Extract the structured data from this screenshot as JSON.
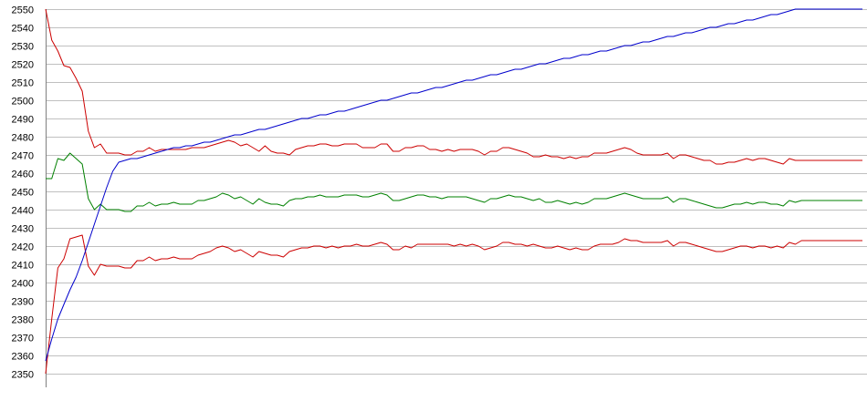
{
  "chart_data": {
    "type": "line",
    "title": "",
    "xlabel": "",
    "ylabel": "",
    "ylim": [
      2350,
      2550
    ],
    "y_ticks": [
      2350,
      2360,
      2370,
      2380,
      2390,
      2400,
      2410,
      2420,
      2430,
      2440,
      2450,
      2460,
      2470,
      2480,
      2490,
      2500,
      2510,
      2520,
      2530,
      2540,
      2550
    ],
    "y_tick_labels": [
      "2350",
      "2360",
      "2370",
      "2380",
      "2390",
      "2400",
      "2410",
      "2420",
      "2430",
      "2440",
      "2450",
      "2460",
      "2470",
      "2480",
      "2490",
      "2500",
      "2510",
      "2520",
      "2530",
      "2540",
      "2550"
    ],
    "x_count": 135,
    "grid": "horizontal",
    "legend": "none",
    "colors": {
      "upper_band": "#cc0000",
      "middle": "#008000",
      "lower_band": "#cc0000",
      "price": "#0000cc",
      "grid": "#c0c0c0",
      "axis": "#808080"
    },
    "series": [
      {
        "key": "upper_band",
        "color": "#cc0000",
        "values": [
          2550,
          2533,
          2527,
          2519,
          2518,
          2512,
          2505,
          2483,
          2474,
          2476,
          2471,
          2471,
          2471,
          2470,
          2470,
          2472,
          2472,
          2474,
          2472,
          2473,
          2473,
          2473,
          2473,
          2473,
          2474,
          2474,
          2474,
          2475,
          2476,
          2477,
          2478,
          2477,
          2475,
          2476,
          2474,
          2472,
          2475,
          2472,
          2471,
          2471,
          2470,
          2473,
          2474,
          2475,
          2475,
          2476,
          2476,
          2475,
          2475,
          2476,
          2476,
          2476,
          2474,
          2474,
          2474,
          2476,
          2476,
          2472,
          2472,
          2474,
          2474,
          2475,
          2475,
          2473,
          2473,
          2472,
          2473,
          2472,
          2473,
          2473,
          2473,
          2472,
          2470,
          2472,
          2472,
          2474,
          2474,
          2473,
          2472,
          2471,
          2469,
          2469,
          2470,
          2469,
          2469,
          2468,
          2469,
          2468,
          2469,
          2469,
          2471,
          2471,
          2471,
          2472,
          2473,
          2474,
          2473,
          2471,
          2470,
          2470,
          2470,
          2470,
          2471,
          2468,
          2470,
          2470,
          2469,
          2468,
          2467,
          2467,
          2465,
          2465,
          2466,
          2466,
          2467,
          2468,
          2467,
          2468,
          2468,
          2467,
          2466,
          2465,
          2468,
          2467,
          2467,
          2467,
          2467,
          2467,
          2467,
          2467,
          2467,
          2467,
          2467,
          2467,
          2467
        ]
      },
      {
        "key": "middle",
        "color": "#008000",
        "values": [
          2457,
          2457,
          2468,
          2467,
          2471,
          2468,
          2465,
          2446,
          2440,
          2443,
          2440,
          2440,
          2440,
          2439,
          2439,
          2442,
          2442,
          2444,
          2442,
          2443,
          2443,
          2444,
          2443,
          2443,
          2443,
          2445,
          2445,
          2446,
          2447,
          2449,
          2448,
          2446,
          2447,
          2445,
          2443,
          2446,
          2444,
          2443,
          2443,
          2442,
          2445,
          2446,
          2446,
          2447,
          2447,
          2448,
          2447,
          2447,
          2447,
          2448,
          2448,
          2448,
          2447,
          2447,
          2448,
          2449,
          2448,
          2445,
          2445,
          2446,
          2447,
          2448,
          2448,
          2447,
          2447,
          2446,
          2447,
          2447,
          2447,
          2447,
          2446,
          2445,
          2444,
          2446,
          2446,
          2447,
          2448,
          2447,
          2447,
          2446,
          2445,
          2446,
          2444,
          2444,
          2445,
          2444,
          2443,
          2444,
          2443,
          2444,
          2446,
          2446,
          2446,
          2447,
          2448,
          2449,
          2448,
          2447,
          2446,
          2446,
          2446,
          2446,
          2447,
          2444,
          2446,
          2446,
          2445,
          2444,
          2443,
          2442,
          2441,
          2441,
          2442,
          2443,
          2443,
          2444,
          2443,
          2444,
          2444,
          2443,
          2443,
          2442,
          2445,
          2444,
          2445,
          2445,
          2445,
          2445,
          2445,
          2445,
          2445,
          2445,
          2445,
          2445,
          2445
        ]
      },
      {
        "key": "lower_band",
        "color": "#cc0000",
        "values": [
          2350,
          2380,
          2408,
          2413,
          2424,
          2425,
          2426,
          2409,
          2404,
          2410,
          2409,
          2409,
          2409,
          2408,
          2408,
          2412,
          2412,
          2414,
          2412,
          2413,
          2413,
          2414,
          2413,
          2413,
          2413,
          2415,
          2416,
          2417,
          2419,
          2420,
          2419,
          2417,
          2418,
          2416,
          2414,
          2417,
          2416,
          2415,
          2415,
          2414,
          2417,
          2418,
          2419,
          2419,
          2420,
          2420,
          2419,
          2420,
          2419,
          2420,
          2420,
          2421,
          2420,
          2420,
          2421,
          2422,
          2421,
          2418,
          2418,
          2420,
          2419,
          2421,
          2421,
          2421,
          2421,
          2421,
          2421,
          2420,
          2421,
          2420,
          2421,
          2420,
          2418,
          2419,
          2420,
          2422,
          2422,
          2421,
          2421,
          2420,
          2421,
          2420,
          2419,
          2419,
          2420,
          2419,
          2418,
          2419,
          2418,
          2418,
          2420,
          2421,
          2421,
          2421,
          2422,
          2424,
          2423,
          2423,
          2422,
          2422,
          2422,
          2422,
          2423,
          2420,
          2422,
          2422,
          2421,
          2420,
          2419,
          2418,
          2417,
          2417,
          2418,
          2419,
          2420,
          2420,
          2419,
          2420,
          2420,
          2419,
          2420,
          2419,
          2422,
          2421,
          2423,
          2423,
          2423,
          2423,
          2423,
          2423,
          2423,
          2423,
          2423,
          2423,
          2423
        ]
      },
      {
        "key": "price",
        "color": "#0000cc",
        "values": [
          2357,
          2369,
          2380,
          2388,
          2396,
          2403,
          2412,
          2422,
          2432,
          2442,
          2452,
          2461,
          2466,
          2467,
          2468,
          2468,
          2469,
          2470,
          2471,
          2472,
          2473,
          2474,
          2474,
          2475,
          2475,
          2476,
          2477,
          2477,
          2478,
          2479,
          2480,
          2481,
          2481,
          2482,
          2483,
          2484,
          2484,
          2485,
          2486,
          2487,
          2488,
          2489,
          2490,
          2490,
          2491,
          2492,
          2492,
          2493,
          2494,
          2494,
          2495,
          2496,
          2497,
          2498,
          2499,
          2500,
          2500,
          2501,
          2502,
          2503,
          2504,
          2504,
          2505,
          2506,
          2507,
          2507,
          2508,
          2509,
          2510,
          2511,
          2511,
          2512,
          2513,
          2514,
          2514,
          2515,
          2516,
          2517,
          2517,
          2518,
          2519,
          2520,
          2520,
          2521,
          2522,
          2523,
          2523,
          2524,
          2525,
          2525,
          2526,
          2527,
          2527,
          2528,
          2529,
          2530,
          2530,
          2531,
          2532,
          2532,
          2533,
          2534,
          2535,
          2535,
          2536,
          2537,
          2537,
          2538,
          2539,
          2540,
          2540,
          2541,
          2542,
          2542,
          2543,
          2544,
          2544,
          2545,
          2546,
          2547,
          2547,
          2548,
          2549,
          2550,
          2550,
          2550,
          2550,
          2550,
          2550,
          2550,
          2550,
          2550,
          2550,
          2550,
          2550
        ]
      }
    ]
  }
}
